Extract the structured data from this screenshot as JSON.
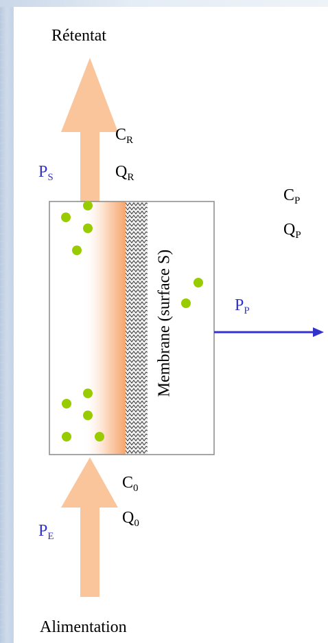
{
  "labels": {
    "retentate": "Rétentat",
    "feed": "Alimentation",
    "membrane": "Membrane (surface S)"
  },
  "variables": {
    "cr": {
      "symbol": "C",
      "sub": "R"
    },
    "qr": {
      "symbol": "Q",
      "sub": "R"
    },
    "ps": {
      "symbol": "P",
      "sub": "S"
    },
    "cp": {
      "symbol": "C",
      "sub": "P"
    },
    "qp": {
      "symbol": "Q",
      "sub": "P"
    },
    "pp": {
      "symbol": "P",
      "sub": "P"
    },
    "c0": {
      "symbol": "C",
      "sub": "0"
    },
    "q0": {
      "symbol": "Q",
      "sub": "0"
    },
    "pe": {
      "symbol": "P",
      "sub": "E"
    }
  },
  "colors": {
    "flow_arrow": "#fbc59c",
    "permeate_arrow": "#3333cc",
    "particle": "#99cc00",
    "pressure_label": "#3333cc",
    "module_border": "#888888"
  }
}
